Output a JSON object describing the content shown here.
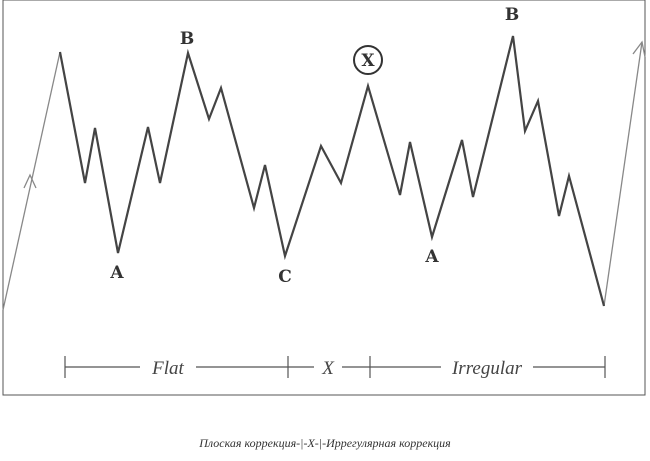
{
  "wave_labels": [
    "B",
    "A",
    "C",
    "X",
    "A",
    "B"
  ],
  "sections": [
    "Flat",
    "X",
    "Irregular"
  ],
  "caption": "Плоская коррекция-|-X-|-Иррегулярная коррекция"
}
